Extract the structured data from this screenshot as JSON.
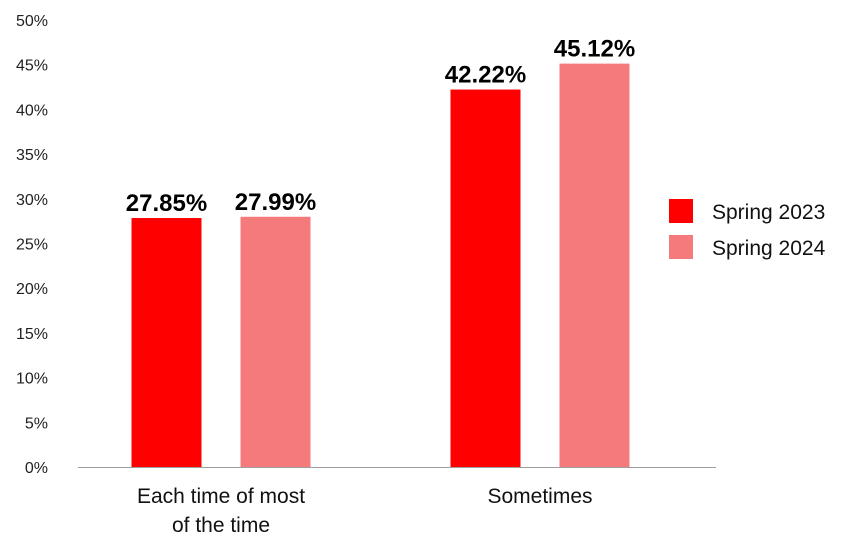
{
  "chart_data": {
    "type": "bar",
    "categories": [
      [
        "Each time of most",
        "of the time"
      ],
      [
        "Sometimes"
      ]
    ],
    "series": [
      {
        "name": "Spring 2023",
        "values": [
          27.85,
          42.22
        ],
        "color": "#ff0000",
        "labels": [
          "27.85%",
          "42.22%"
        ]
      },
      {
        "name": "Spring 2024",
        "values": [
          27.99,
          45.12
        ],
        "color": "#f47a7c",
        "labels": [
          "27.99%",
          "45.12%"
        ]
      }
    ],
    "ylim": [
      0,
      50
    ],
    "yticks": [
      0,
      5,
      10,
      15,
      20,
      25,
      30,
      35,
      40,
      45,
      50
    ],
    "ytick_labels": [
      "0%",
      "5%",
      "10%",
      "15%",
      "20%",
      "25%",
      "30%",
      "35%",
      "40%",
      "45%",
      "50%"
    ],
    "grid": false,
    "legend_position": "right",
    "title": "",
    "xlabel": "",
    "ylabel": ""
  }
}
